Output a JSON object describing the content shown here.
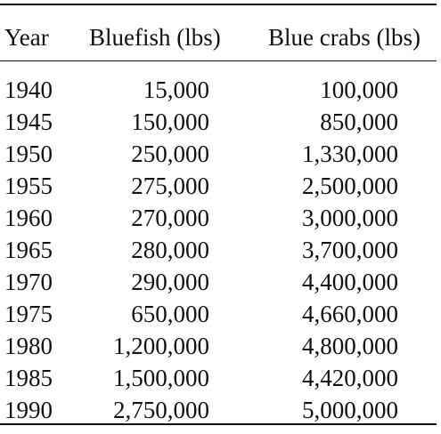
{
  "table": {
    "headers": [
      "Year",
      "Bluefish (lbs)",
      "Blue crabs (lbs)"
    ],
    "rows": [
      [
        "1940",
        "15,000",
        "100,000"
      ],
      [
        "1945",
        "150,000",
        "850,000"
      ],
      [
        "1950",
        "250,000",
        "1,330,000"
      ],
      [
        "1955",
        "275,000",
        "2,500,000"
      ],
      [
        "1960",
        "270,000",
        "3,000,000"
      ],
      [
        "1965",
        "280,000",
        "3,700,000"
      ],
      [
        "1970",
        "290,000",
        "4,400,000"
      ],
      [
        "1975",
        "650,000",
        "4,660,000"
      ],
      [
        "1980",
        "1,200,000",
        "4,800,000"
      ],
      [
        "1985",
        "1,500,000",
        "4,420,000"
      ],
      [
        "1990",
        "2,750,000",
        "5,000,000"
      ]
    ]
  }
}
